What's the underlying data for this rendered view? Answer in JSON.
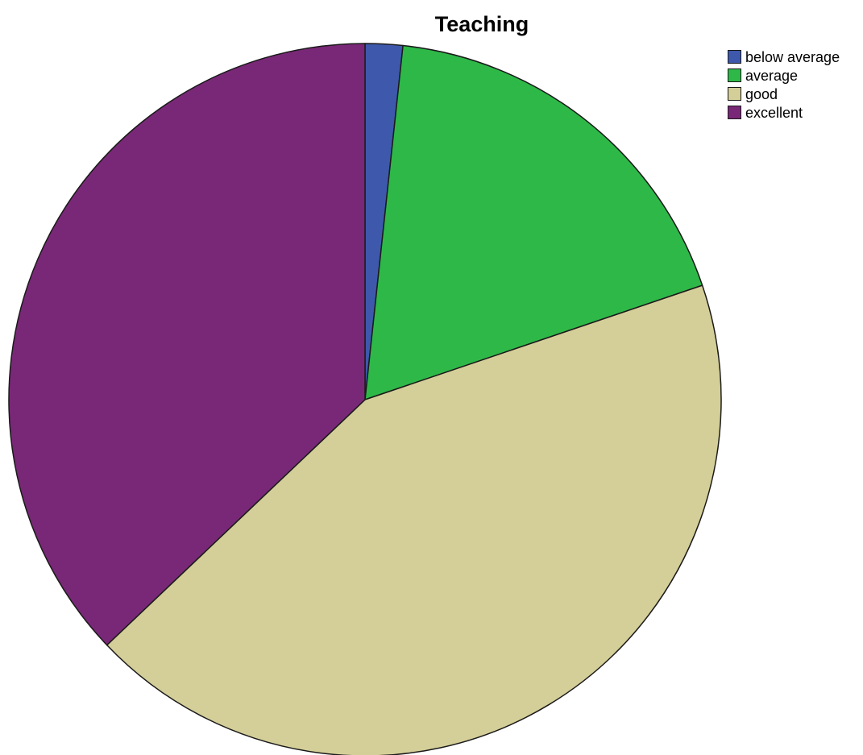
{
  "chart_data": {
    "type": "pie",
    "title": "Teaching",
    "slices": [
      {
        "label": "below average",
        "value": 1.7,
        "color": "#3e58ac"
      },
      {
        "label": "average",
        "value": 18.1,
        "color": "#2eb848"
      },
      {
        "label": "good",
        "value": 43.1,
        "color": "#d4ce98"
      },
      {
        "label": "excellent",
        "value": 37.1,
        "color": "#792877"
      }
    ],
    "legend_position": "top-right",
    "start_angle": "12 o'clock",
    "direction": "clockwise",
    "slice_border_color": "#1a1a1a"
  }
}
